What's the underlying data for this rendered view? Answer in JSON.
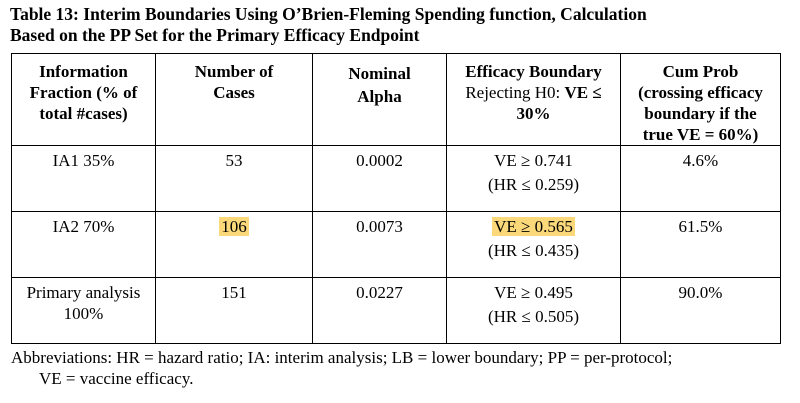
{
  "caption": {
    "line1": "Table 13:  Interim Boundaries Using O’Brien-Fleming Spending function, Calculation",
    "line2": "Based on the PP Set for the Primary Efficacy Endpoint"
  },
  "headers": {
    "info_fraction": [
      "Information",
      "Fraction (% of",
      "total #cases)"
    ],
    "num_cases": [
      "Number of",
      "Cases"
    ],
    "nominal_alpha": [
      "Nominal",
      "Alpha"
    ],
    "efficacy_title": "Efficacy Boundary",
    "efficacy_sub_plain": "Rejecting H0: ",
    "efficacy_sub_bold": "VE ≤",
    "efficacy_sub_line3": "30%",
    "cum_prob": [
      "Cum Prob",
      "(crossing efficacy",
      "boundary if the",
      "true VE = 60%)"
    ]
  },
  "rows": [
    {
      "info": [
        "IA1 35%"
      ],
      "cases": "53",
      "alpha": "0.0002",
      "ve": "VE ≥ 0.741",
      "hr": "(HR ≤ 0.259)",
      "cum": "4.6%"
    },
    {
      "info": [
        "IA2 70%"
      ],
      "cases": "106",
      "alpha": "0.0073",
      "ve": "VE ≥ 0.565",
      "hr": "(HR ≤ 0.435)",
      "cum": "61.5%"
    },
    {
      "info": [
        "Primary analysis",
        "100%"
      ],
      "cases": "151",
      "alpha": "0.0227",
      "ve": "VE ≥ 0.495",
      "hr": "(HR ≤ 0.505)",
      "cum": "90.0%"
    }
  ],
  "abbreviations": {
    "line1": "Abbreviations: HR = hazard ratio; IA: interim analysis; LB = lower boundary; PP = per-protocol;",
    "line2": "VE = vaccine efficacy."
  },
  "colors": {
    "highlight": "#fbd87a"
  }
}
